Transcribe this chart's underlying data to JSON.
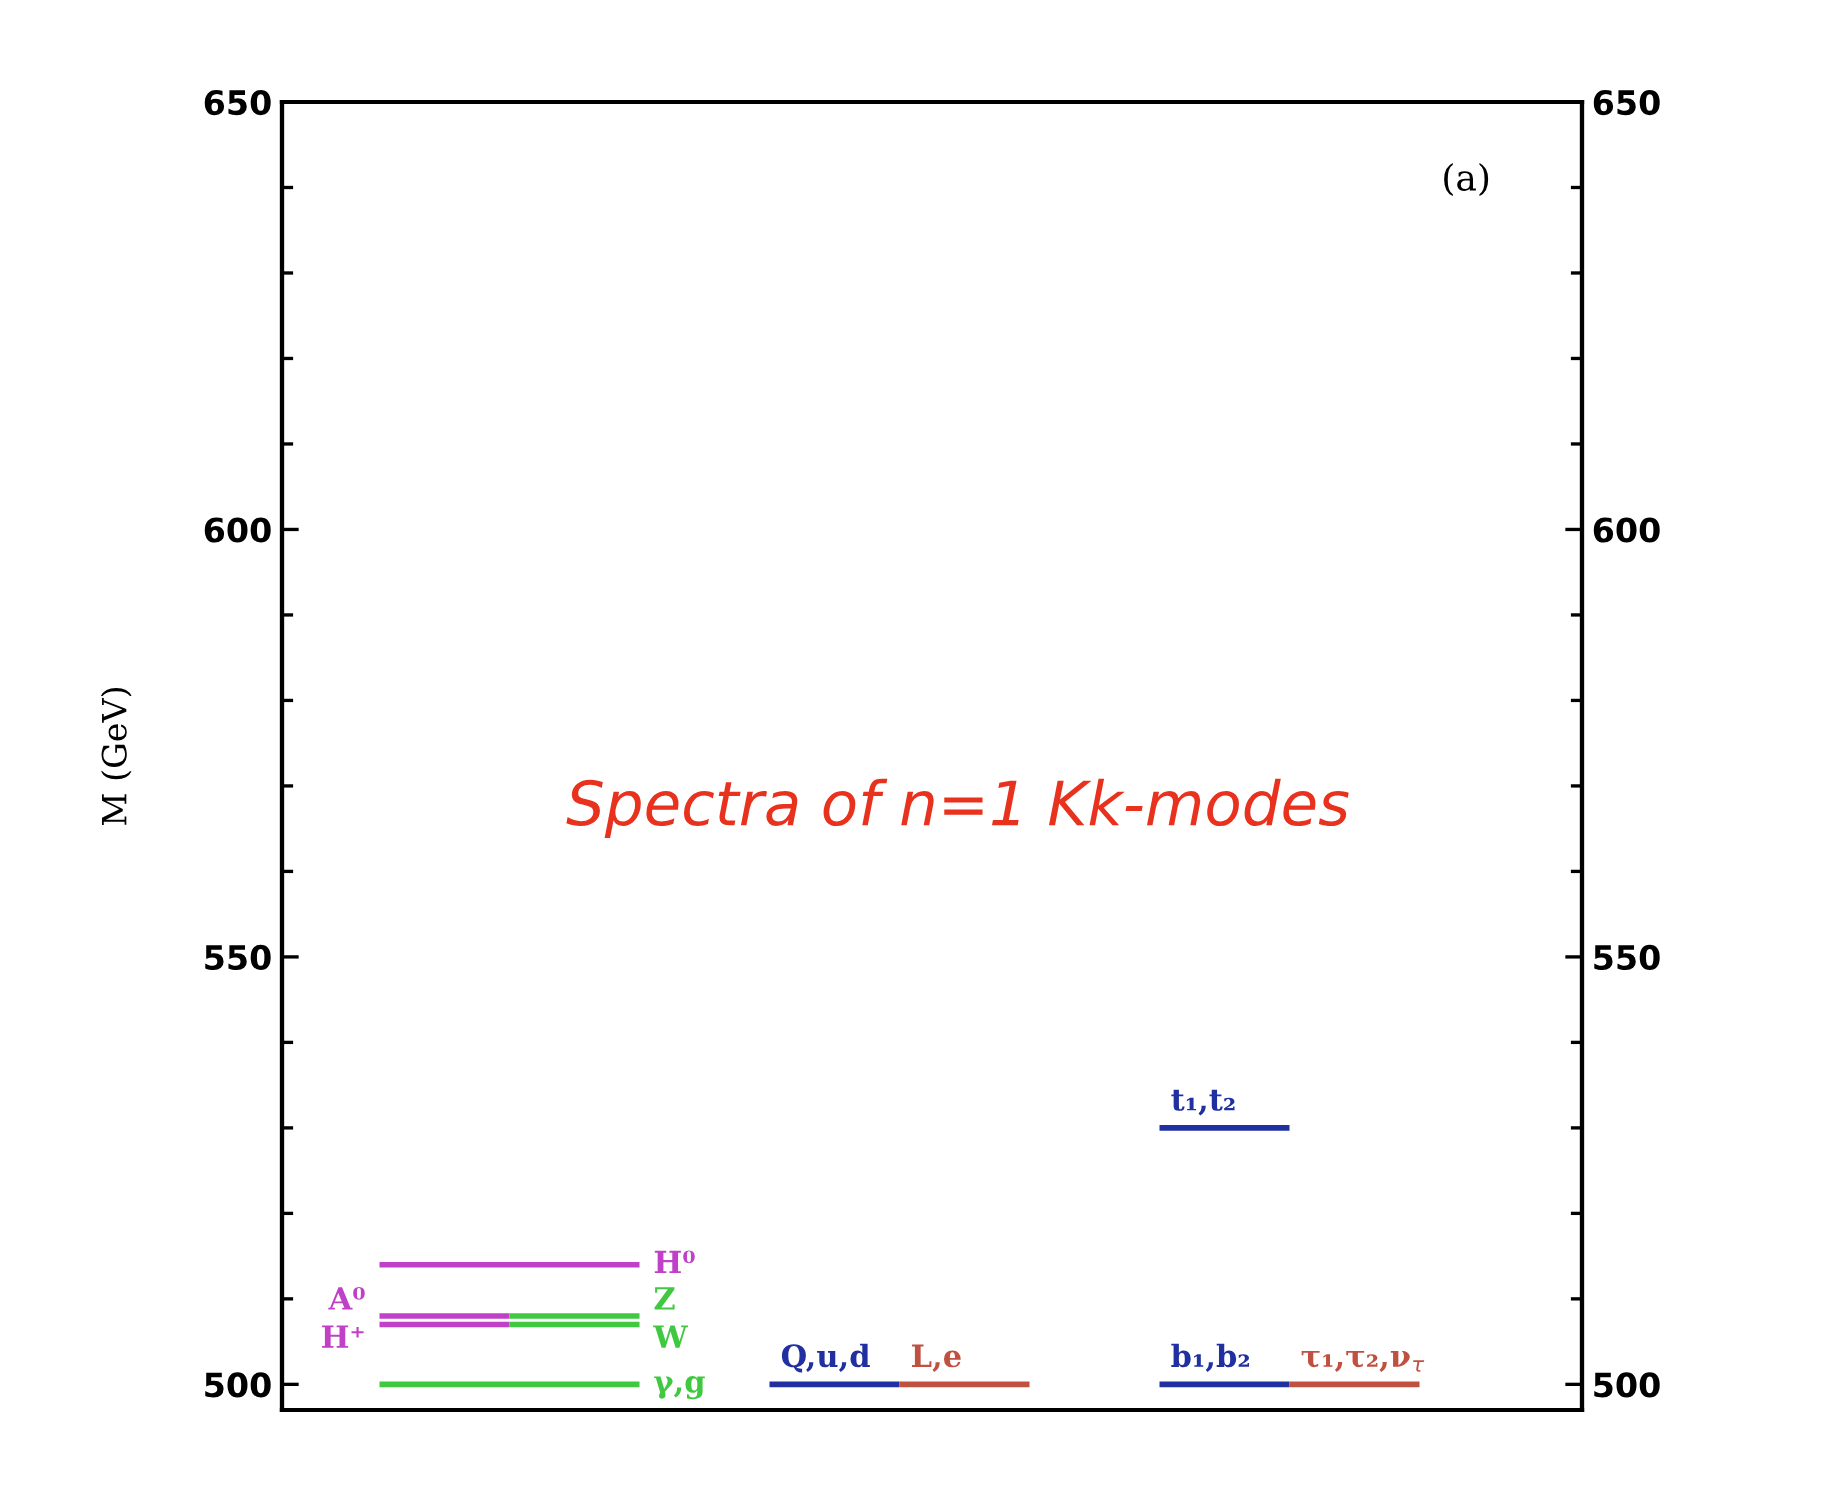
{
  "chart_data": {
    "type": "line",
    "ylabel": "M (GeV)",
    "ylim": [
      497,
      650
    ],
    "y2lim": [
      497,
      650
    ],
    "categories": [
      null,
      null,
      null,
      null,
      null,
      null,
      null,
      null,
      null,
      null,
      null,
      null,
      null,
      null,
      null,
      null,
      null,
      null,
      null,
      null
    ],
    "yticks": [
      500,
      {
        "value": 510,
        "label": null
      },
      {
        "value": 520,
        "label": null
      },
      {
        "value": 530,
        "label": null
      },
      {
        "value": 540,
        "label": null
      },
      550,
      {
        "value": 560,
        "label": null
      },
      {
        "value": 570,
        "label": null
      },
      {
        "value": 580,
        "label": null
      },
      {
        "value": 590,
        "label": null
      },
      600,
      {
        "value": 610,
        "label": null
      },
      {
        "value": 620,
        "label": null
      },
      {
        "value": 630,
        "label": null
      },
      {
        "value": 640,
        "label": null
      },
      650
    ],
    "y2ticks": [
      500,
      {
        "value": 510,
        "label": null
      },
      {
        "value": 520,
        "label": null
      },
      {
        "value": 530,
        "label": null
      },
      {
        "value": 540,
        "label": null
      },
      550,
      {
        "value": 560,
        "label": null
      },
      {
        "value": 570,
        "label": null
      },
      {
        "value": 580,
        "label": null
      },
      {
        "value": 590,
        "label": null
      },
      600,
      {
        "value": 610,
        "label": null
      },
      {
        "value": 620,
        "label": null
      },
      {
        "value": 630,
        "label": null
      },
      {
        "value": 640,
        "label": null
      },
      650
    ],
    "tick_labels": "y",
    "grid": false,
    "legend": false,
    "marker": "none",
    "line_style": "solid",
    "series": [
      {
        "name": "H⁰",
        "color": "#c040c8",
        "values": [
          null,
          514,
          514,
          514,
          514,
          514,
          null,
          null,
          null,
          null,
          null,
          null,
          null,
          null,
          null,
          null,
          null,
          null,
          null,
          null
        ]
      },
      {
        "name": "A⁰",
        "color": "#c040c8",
        "values": [
          null,
          508,
          508,
          508,
          null,
          null,
          null,
          null,
          null,
          null,
          null,
          null,
          null,
          null,
          null,
          null,
          null,
          null,
          null,
          null
        ]
      },
      {
        "name": "H⁺",
        "color": "#c040c8",
        "values": [
          null,
          507,
          507,
          507,
          null,
          null,
          null,
          null,
          null,
          null,
          null,
          null,
          null,
          null,
          null,
          null,
          null,
          null,
          null,
          null
        ]
      },
      {
        "name": "Z",
        "color": "#40c840",
        "values": [
          null,
          null,
          null,
          508,
          508,
          508,
          null,
          null,
          null,
          null,
          null,
          null,
          null,
          null,
          null,
          null,
          null,
          null,
          null,
          null
        ]
      },
      {
        "name": "W",
        "color": "#40c840",
        "values": [
          null,
          null,
          null,
          507,
          507,
          507,
          null,
          null,
          null,
          null,
          null,
          null,
          null,
          null,
          null,
          null,
          null,
          null,
          null,
          null
        ]
      },
      {
        "name": "γ,g",
        "color": "#40c840",
        "values": [
          null,
          500,
          500,
          500,
          500,
          500,
          null,
          null,
          null,
          null,
          null,
          null,
          null,
          null,
          null,
          null,
          null,
          null,
          null,
          null
        ]
      },
      {
        "name": "Q,u,d",
        "color": "#2030a0",
        "values": [
          null,
          null,
          null,
          null,
          null,
          null,
          null,
          500,
          500,
          500,
          null,
          null,
          null,
          null,
          null,
          null,
          null,
          null,
          null,
          null
        ]
      },
      {
        "name": "L,e",
        "color": "#c05040",
        "values": [
          null,
          null,
          null,
          null,
          null,
          null,
          null,
          null,
          null,
          500,
          500,
          500,
          null,
          null,
          null,
          null,
          null,
          null,
          null,
          null
        ]
      },
      {
        "name": "t₁,t₂",
        "color": "#2030a0",
        "values": [
          null,
          null,
          null,
          null,
          null,
          null,
          null,
          null,
          null,
          null,
          null,
          null,
          null,
          530,
          530,
          530,
          null,
          null,
          null,
          null
        ]
      },
      {
        "name": "b₁,b₂",
        "color": "#2030a0",
        "values": [
          null,
          null,
          null,
          null,
          null,
          null,
          null,
          null,
          null,
          null,
          null,
          null,
          null,
          500,
          500,
          500,
          null,
          null,
          null,
          null
        ]
      },
      {
        "name": "τ₁,τ₂,ν$_{τ}$",
        "color": "#c05040",
        "values": [
          null,
          null,
          null,
          null,
          null,
          null,
          null,
          null,
          null,
          null,
          null,
          null,
          null,
          null,
          null,
          500,
          500,
          500,
          null,
          null
        ]
      }
    ],
    "annotations": [
      "(a)",
      "Spectra of n=1 Kk-modes"
    ]
  }
}
